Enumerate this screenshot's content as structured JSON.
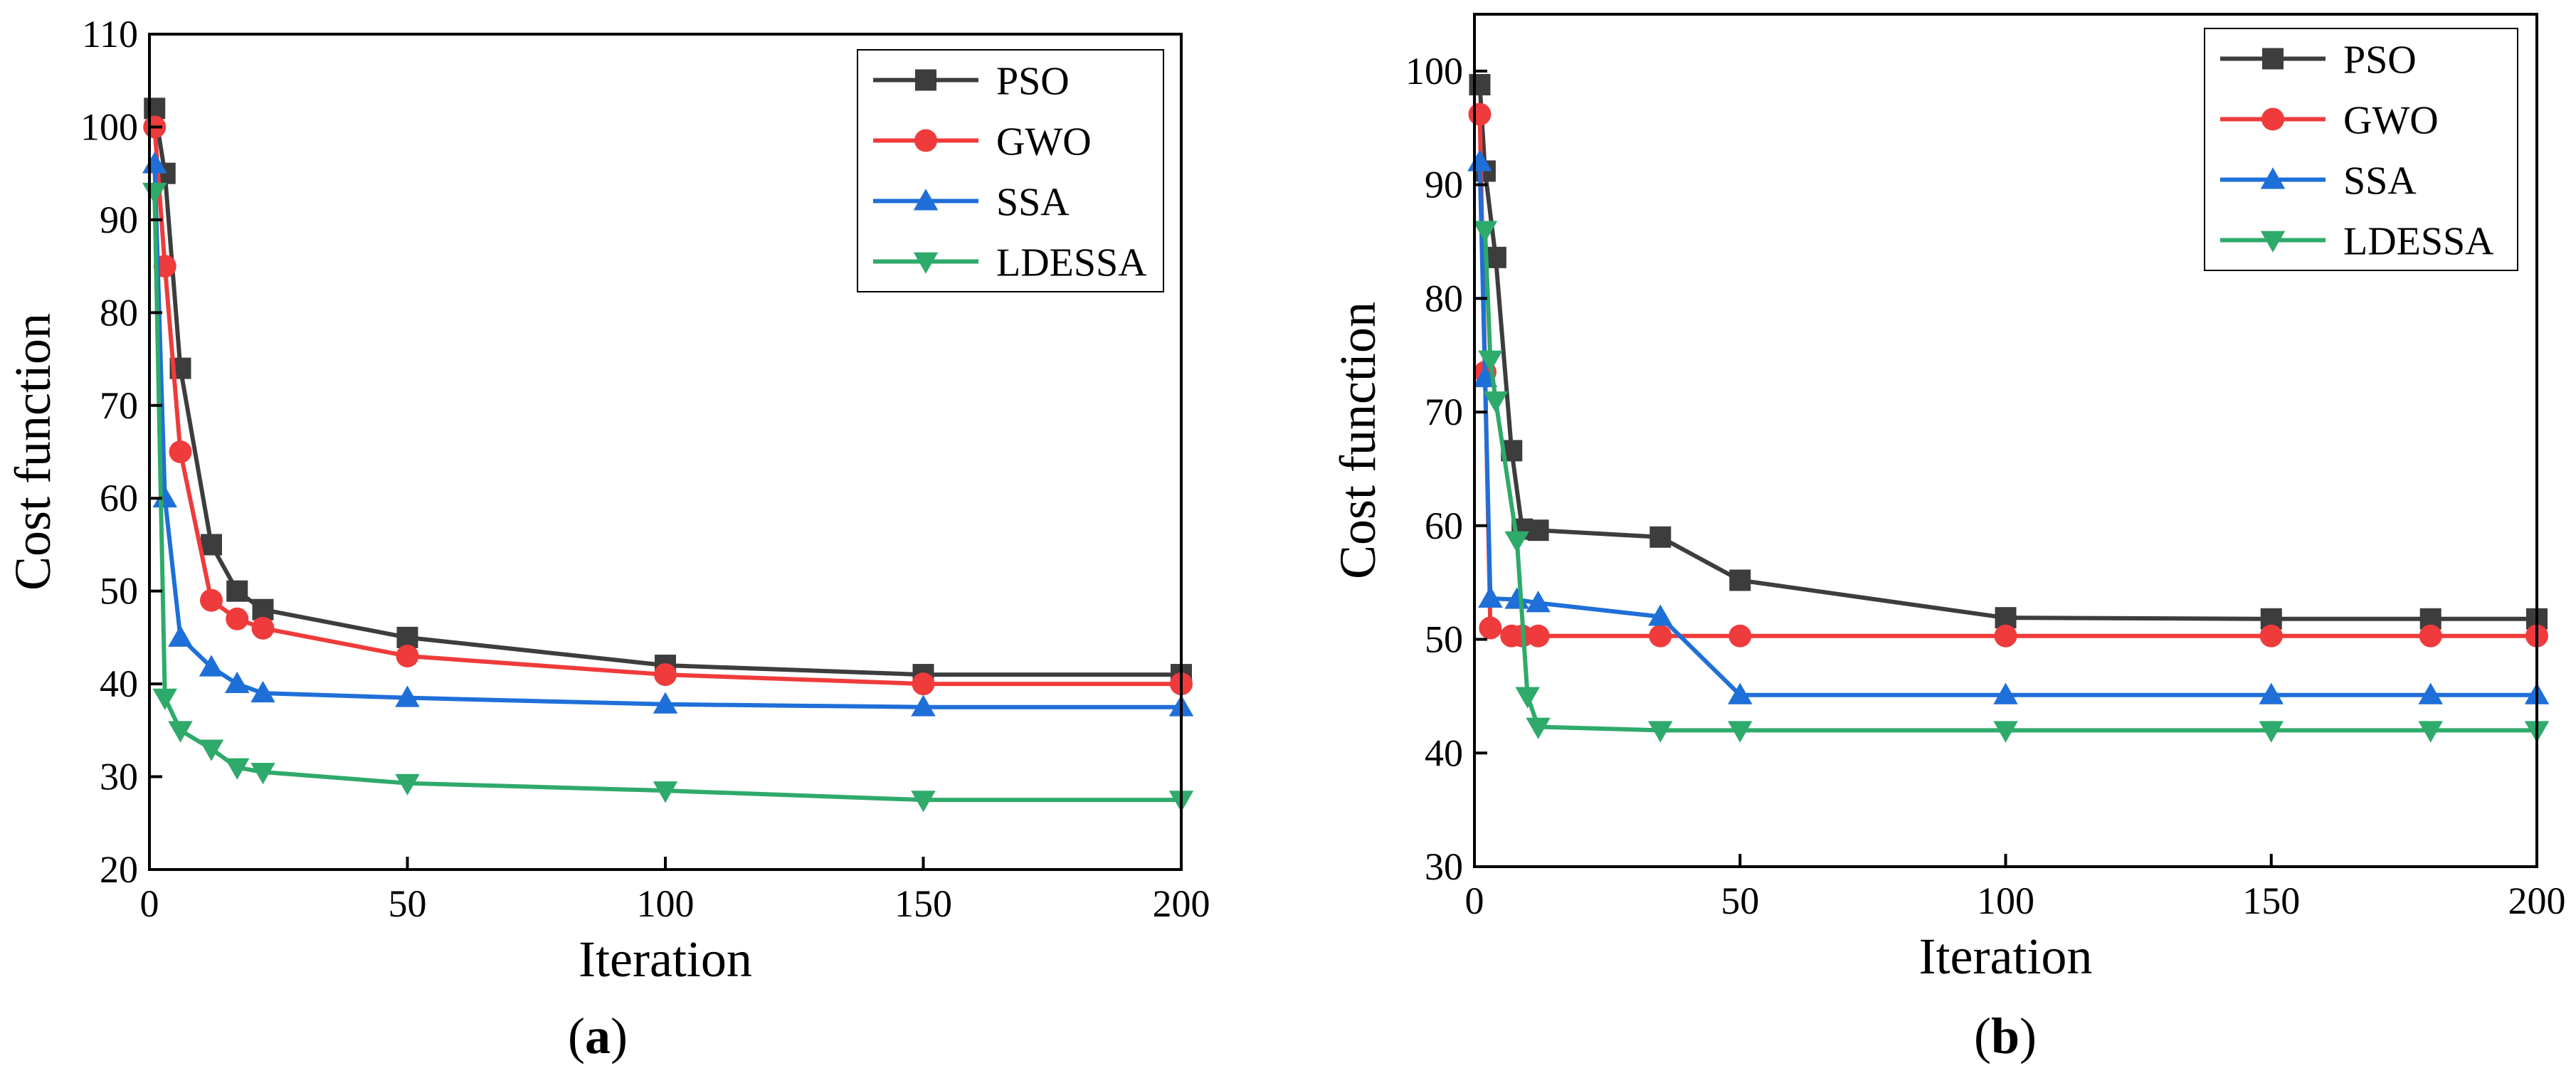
{
  "chart_data": [
    {
      "id": "a",
      "type": "line",
      "caption": "a",
      "xlabel": "Iteration",
      "ylabel": "Cost function",
      "xlim": [
        0,
        200
      ],
      "ylim": [
        20,
        110
      ],
      "xticks": [
        0,
        50,
        100,
        150,
        200
      ],
      "yticks": [
        20,
        30,
        40,
        50,
        60,
        70,
        80,
        90,
        100,
        110
      ],
      "grid": false,
      "legend_position": "top-right",
      "series": [
        {
          "name": "PSO",
          "color": "#3d3d3d",
          "marker": "square",
          "x": [
            1,
            3,
            6,
            12,
            17,
            22,
            50,
            100,
            150,
            200
          ],
          "y": [
            102,
            95,
            74,
            55,
            50,
            48,
            45,
            42,
            41,
            41
          ]
        },
        {
          "name": "GWO",
          "color": "#ef3b3b",
          "marker": "circle",
          "x": [
            1,
            3,
            6,
            12,
            17,
            22,
            50,
            100,
            150,
            200
          ],
          "y": [
            100,
            85,
            65,
            49,
            47,
            46,
            43,
            41,
            40,
            40
          ]
        },
        {
          "name": "SSA",
          "color": "#1f6fd8",
          "marker": "triangle-up",
          "x": [
            1,
            3,
            6,
            12,
            17,
            22,
            50,
            100,
            150,
            200
          ],
          "y": [
            96,
            60,
            45,
            41.8,
            40,
            39,
            38.5,
            37.8,
            37.5,
            37.5
          ]
        },
        {
          "name": "LDESSA",
          "color": "#2eaa6a",
          "marker": "triangle-down",
          "x": [
            1,
            3,
            6,
            12,
            17,
            22,
            50,
            100,
            150,
            200
          ],
          "y": [
            93,
            38.5,
            35,
            33,
            31,
            30.5,
            29.3,
            28.5,
            27.5,
            27.5
          ]
        }
      ]
    },
    {
      "id": "b",
      "type": "line",
      "caption": "b",
      "xlabel": "Iteration",
      "ylabel": "Cost function",
      "xlim": [
        0,
        200
      ],
      "ylim": [
        30,
        105
      ],
      "xticks": [
        0,
        50,
        100,
        150,
        200
      ],
      "yticks": [
        30,
        40,
        50,
        60,
        70,
        80,
        90,
        100
      ],
      "grid": false,
      "legend_position": "top-right",
      "series": [
        {
          "name": "PSO",
          "color": "#3d3d3d",
          "marker": "square",
          "x": [
            1,
            2,
            4,
            7,
            9,
            12,
            35,
            50,
            100,
            150,
            180,
            200
          ],
          "y": [
            98.8,
            91.2,
            83.6,
            66.6,
            59.7,
            59.6,
            59.0,
            55.2,
            51.9,
            51.8,
            51.8,
            51.8
          ]
        },
        {
          "name": "GWO",
          "color": "#ef3b3b",
          "marker": "circle",
          "x": [
            1,
            2,
            3,
            7,
            9,
            12,
            35,
            50,
            100,
            150,
            180,
            200
          ],
          "y": [
            96.2,
            73.5,
            51.0,
            50.3,
            50.3,
            50.3,
            50.3,
            50.3,
            50.3,
            50.3,
            50.3,
            50.3
          ]
        },
        {
          "name": "SSA",
          "color": "#1f6fd8",
          "marker": "triangle-up",
          "x": [
            1,
            2,
            3,
            8,
            12,
            35,
            50,
            100,
            150,
            180,
            200
          ],
          "y": [
            92.0,
            73.0,
            53.6,
            53.5,
            53.2,
            52.0,
            45.1,
            45.1,
            45.1,
            45.1,
            45.1
          ]
        },
        {
          "name": "LDESSA",
          "color": "#2eaa6a",
          "marker": "triangle-down",
          "x": [
            2,
            3,
            4,
            8,
            10,
            12,
            35,
            50,
            100,
            150,
            180,
            200
          ],
          "y": [
            86.0,
            74.6,
            71.0,
            58.7,
            45.0,
            42.3,
            42.0,
            42.0,
            42.0,
            42.0,
            42.0,
            42.0
          ]
        }
      ]
    }
  ]
}
